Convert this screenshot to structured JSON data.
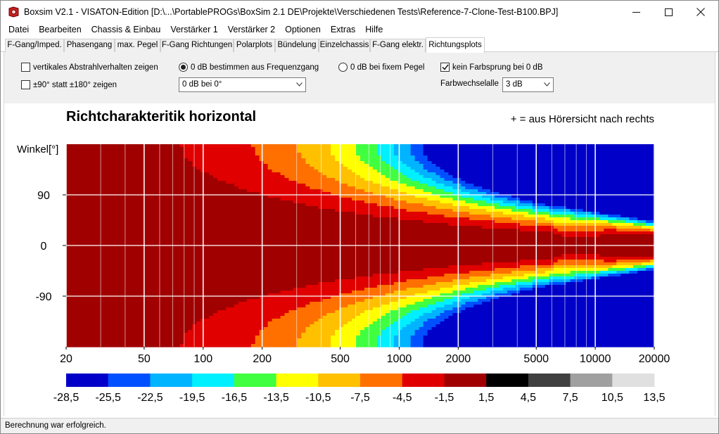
{
  "window": {
    "title": "Boxsim V2.1 - VISATON-Edition [D:\\...\\PortablePROGs\\BoxSim 2.1 DE\\Projekte\\Verschiedenen Tests\\Reference-7-Clone-Test-B100.BPJ]"
  },
  "menu": [
    "Datei",
    "Bearbeiten",
    "Chassis & Einbau",
    "Verstärker 1",
    "Verstärker 2",
    "Optionen",
    "Extras",
    "Hilfe"
  ],
  "tabs": [
    {
      "label": "F-Gang/Imped.",
      "active": false
    },
    {
      "label": "Phasengang",
      "active": false
    },
    {
      "label": "max. Pegel",
      "active": false
    },
    {
      "label": "F-Gang Richtungen",
      "active": false
    },
    {
      "label": "Polarplots",
      "active": false
    },
    {
      "label": "Bündelung",
      "active": false
    },
    {
      "label": "Einzelchassis",
      "active": false
    },
    {
      "label": "F-Gang elektr.",
      "active": false
    },
    {
      "label": "Richtungsplots",
      "active": true
    }
  ],
  "options": {
    "vertical_label": "vertikales Abstrahlverhalten zeigen",
    "vertical_checked": false,
    "range90_label": "±90° statt ±180° zeigen",
    "range90_checked": false,
    "zero_freq_label": "0 dB bestimmen aus Frequenzgang",
    "zero_freq_selected": true,
    "zero_fixed_label": "0 dB bei fixem Pegel",
    "zero_fixed_selected": false,
    "reference_select": "0 dB bei 0°",
    "no_color_jump_label": "kein Farbsprung bei 0 dB",
    "no_color_jump_checked": true,
    "color_change_label": "Farbwechsel",
    "every_label": "alle",
    "step_select": "3 dB"
  },
  "status": "Berechnung war erfolgreich.",
  "chart_data": {
    "type": "heatmap",
    "title": "Richtcharakteritik horizontal",
    "annotation": "+ = aus Hörersicht nach rechts",
    "ylabel": "Winkel[°]",
    "x_scale": "log",
    "xlim": [
      20,
      20000
    ],
    "x_ticks": [
      20,
      50,
      100,
      200,
      500,
      1000,
      2000,
      5000,
      10000,
      20000
    ],
    "ylim": [
      -180,
      180
    ],
    "y_ticks": [
      90,
      0,
      -90
    ],
    "grid": true,
    "colorbar": {
      "labels": [
        "-28,5",
        "-25,5",
        "-22,5",
        "-19,5",
        "-16,5",
        "-13,5",
        "-10,5",
        "-7,5",
        "-4,5",
        "-1,5",
        "1,5",
        "4,5",
        "7,5",
        "10,5",
        "13,5"
      ],
      "colors": [
        "#0000c8",
        "#0050ff",
        "#00b4ff",
        "#00f0ff",
        "#40ff40",
        "#ffff00",
        "#ffc000",
        "#ff7000",
        "#e00000",
        "#a00000",
        "#000000",
        "#404040",
        "#a0a0a0",
        "#e0e0e0"
      ]
    }
  }
}
